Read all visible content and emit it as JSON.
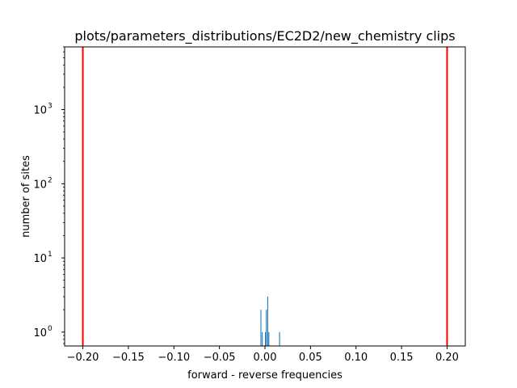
{
  "chart_data": {
    "type": "bar",
    "title": "plots/parameters_distributions/EC2D2/new_chemistry clips",
    "xlabel": "forward - reverse frequencies",
    "ylabel": "number of sites",
    "xlim": [
      -0.22,
      0.22
    ],
    "ylim": [
      0.65,
      7000
    ],
    "yscale": "log",
    "grid": false,
    "x_ticks": [
      {
        "value": -0.2,
        "label": "−0.20"
      },
      {
        "value": -0.15,
        "label": "−0.15"
      },
      {
        "value": -0.1,
        "label": "−0.10"
      },
      {
        "value": -0.05,
        "label": "−0.05"
      },
      {
        "value": 0.0,
        "label": "0.00"
      },
      {
        "value": 0.05,
        "label": "0.05"
      },
      {
        "value": 0.1,
        "label": "0.10"
      },
      {
        "value": 0.15,
        "label": "0.15"
      },
      {
        "value": 0.2,
        "label": "0.20"
      }
    ],
    "y_ticks": [
      {
        "value": 1,
        "base": "10",
        "exp": "0"
      },
      {
        "value": 10,
        "base": "10",
        "exp": "1"
      },
      {
        "value": 100,
        "base": "10",
        "exp": "2"
      },
      {
        "value": 1000,
        "base": "10",
        "exp": "3"
      }
    ],
    "bar_color": "#1f77b4",
    "bars": [
      {
        "x": -0.0045,
        "count": 2
      },
      {
        "x": -0.003,
        "count": 1
      },
      {
        "x": 0.0005,
        "count": 1
      },
      {
        "x": 0.0015,
        "count": 2
      },
      {
        "x": 0.003,
        "count": 3
      },
      {
        "x": 0.0042,
        "count": 1
      },
      {
        "x": 0.016,
        "count": 1
      }
    ],
    "threshold_lines": [
      {
        "x": -0.2,
        "color": "#ff0000"
      },
      {
        "x": 0.2,
        "color": "#ff0000"
      }
    ]
  }
}
